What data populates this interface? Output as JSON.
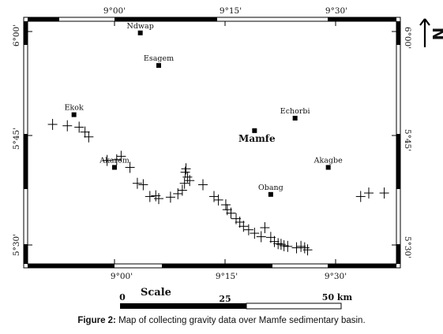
{
  "map": {
    "ticks_top": [
      "9°00'",
      "9°15'",
      "9°30'"
    ],
    "ticks_bottom": [
      "9°00'",
      "9°15'",
      "9°30'"
    ],
    "ticks_left": [
      "6°00'",
      "5°45'",
      "5°30'"
    ],
    "ticks_right": [
      "6°00'",
      "5°45'",
      "5°30'"
    ],
    "north_arrow_label": "N",
    "towns": [
      {
        "name": "Ndwap",
        "lon_min": 3.5,
        "lat_min": 14.8
      },
      {
        "name": "Esagem",
        "lon_min": 6.0,
        "lat_min": 10.1
      },
      {
        "name": "Ekok",
        "lon_min": -5.5,
        "lat_min": 3.0
      },
      {
        "name": "Echorbi",
        "lon_min": 24.5,
        "lat_min": 2.5
      },
      {
        "name": "Mamfe",
        "lon_min": 19.0,
        "lat_min": 0.7,
        "emphasis": true
      },
      {
        "name": "Akarem",
        "lon_min": 0.0,
        "lat_min": -4.6
      },
      {
        "name": "Akagbe",
        "lon_min": 29.0,
        "lat_min": -4.6
      },
      {
        "name": "Obang",
        "lon_min": 21.2,
        "lat_min": -8.5
      }
    ],
    "stations": [
      [
        -8.4,
        1.6
      ],
      [
        -6.4,
        1.4
      ],
      [
        -4.8,
        1.2
      ],
      [
        -4.0,
        0.5
      ],
      [
        -3.5,
        -0.2
      ],
      [
        -1.0,
        -3.6
      ],
      [
        0.3,
        -3.5
      ],
      [
        0.9,
        -3.0
      ],
      [
        2.1,
        -4.6
      ],
      [
        3.1,
        -6.9
      ],
      [
        3.9,
        -7.1
      ],
      [
        4.8,
        -8.8
      ],
      [
        5.6,
        -8.7
      ],
      [
        6.0,
        -9.1
      ],
      [
        7.6,
        -8.9
      ],
      [
        8.6,
        -8.4
      ],
      [
        9.2,
        -7.9
      ],
      [
        9.5,
        -6.9
      ],
      [
        9.6,
        -5.3
      ],
      [
        9.7,
        -4.8
      ],
      [
        9.9,
        -6.0
      ],
      [
        10.2,
        -6.5
      ],
      [
        12.0,
        -7.1
      ],
      [
        13.5,
        -8.8
      ],
      [
        14.1,
        -9.3
      ],
      [
        15.1,
        -10.0
      ],
      [
        15.3,
        -10.7
      ],
      [
        15.8,
        -11.2
      ],
      [
        16.5,
        -12.0
      ],
      [
        17.0,
        -12.5
      ],
      [
        17.5,
        -13.1
      ],
      [
        18.2,
        -13.6
      ],
      [
        19.0,
        -14.1
      ],
      [
        19.9,
        -14.6
      ],
      [
        20.4,
        -13.3
      ],
      [
        21.2,
        -14.7
      ],
      [
        21.7,
        -15.3
      ],
      [
        22.2,
        -15.6
      ],
      [
        22.6,
        -15.7
      ],
      [
        23.0,
        -15.9
      ],
      [
        23.5,
        -16.0
      ],
      [
        24.7,
        -16.2
      ],
      [
        25.3,
        -16.0
      ],
      [
        25.8,
        -16.2
      ],
      [
        26.2,
        -16.5
      ],
      [
        33.4,
        -8.8
      ],
      [
        34.5,
        -8.3
      ],
      [
        36.6,
        -8.3
      ]
    ],
    "scale": {
      "title": "Scale",
      "labels": [
        "0",
        "25",
        "50 km"
      ]
    }
  },
  "caption": {
    "label": "Figure 2:",
    "text": " Map of collecting gravity data over Mamfe sedimentary basin."
  }
}
